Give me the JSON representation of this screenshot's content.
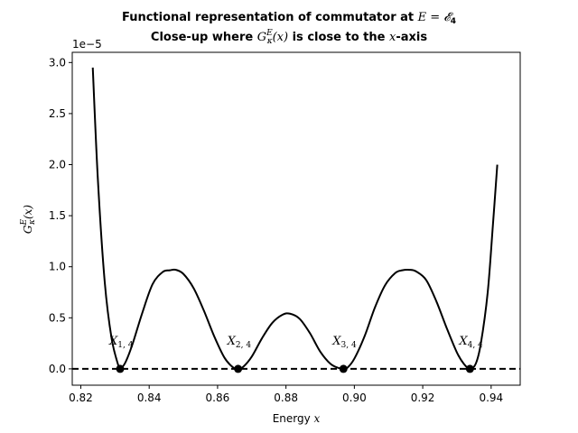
{
  "chart_data": {
    "type": "line",
    "title_lines": [
      "Functional representation of commutator at E = 𝓔4",
      "Close-up where G_κ^E(x) is close to the x-axis"
    ],
    "title_parts": {
      "line1_text": "Functional representation of commutator at ",
      "line1_math": "E = 𝓔",
      "line1_sub": "4",
      "line2_pre": "Close-up where ",
      "line2_math": "G",
      "line2_sup": "E",
      "line2_sub": "κ",
      "line2_mid": "(x)",
      "line2_post": " is close to the ",
      "line2_x": "x",
      "line2_end": "-axis"
    },
    "xlabel": "Energy x",
    "xlabel_parts": {
      "text": "Energy ",
      "var": "x"
    },
    "ylabel": "G_κ^E(x)",
    "ylabel_parts": {
      "main": "G",
      "sup": "E",
      "sub": "κ",
      "tail": "(x)"
    },
    "offset_text": "1e−5",
    "xlim": [
      0.8175,
      0.9485
    ],
    "ylim": [
      -0.16,
      3.1
    ],
    "y_unit_scale": 1e-05,
    "x_ticks": [
      "0.82",
      "0.84",
      "0.86",
      "0.88",
      "0.90",
      "0.92",
      "0.94"
    ],
    "y_ticks": [
      "0.0",
      "0.5",
      "1.0",
      "1.5",
      "2.0",
      "2.5",
      "3.0"
    ],
    "grid": false,
    "curve": {
      "color": "#000000",
      "x": [
        0.8235,
        0.825,
        0.827,
        0.829,
        0.831,
        0.8315,
        0.833,
        0.835,
        0.838,
        0.841,
        0.844,
        0.846,
        0.8478,
        0.85,
        0.853,
        0.856,
        0.859,
        0.862,
        0.8645,
        0.866,
        0.8675,
        0.87,
        0.873,
        0.876,
        0.879,
        0.8812,
        0.884,
        0.887,
        0.89,
        0.893,
        0.8955,
        0.8968,
        0.898,
        0.9,
        0.903,
        0.906,
        0.909,
        0.912,
        0.914,
        0.916,
        0.918,
        0.921,
        0.924,
        0.927,
        0.93,
        0.932,
        0.9338,
        0.9355,
        0.937,
        0.939,
        0.9405,
        0.9418
      ],
      "y": [
        2.95,
        1.85,
        0.85,
        0.3,
        0.03,
        0.0,
        0.06,
        0.23,
        0.55,
        0.83,
        0.95,
        0.965,
        0.97,
        0.93,
        0.79,
        0.57,
        0.32,
        0.11,
        0.015,
        0.0,
        0.02,
        0.12,
        0.3,
        0.45,
        0.53,
        0.54,
        0.49,
        0.35,
        0.17,
        0.05,
        0.007,
        0.0,
        0.012,
        0.1,
        0.32,
        0.6,
        0.82,
        0.94,
        0.965,
        0.97,
        0.955,
        0.87,
        0.66,
        0.4,
        0.16,
        0.05,
        0.0,
        0.05,
        0.25,
        0.75,
        1.4,
        2.0
      ]
    },
    "baseline": {
      "y": 0.0,
      "style": "dashed",
      "color": "#000000"
    },
    "roots": [
      {
        "x": 0.8315,
        "y": 0.0,
        "label": "X_{1,4}",
        "label_main": "X",
        "label_sub": "1, 4"
      },
      {
        "x": 0.866,
        "y": 0.0,
        "label": "X_{2,4}",
        "label_main": "X",
        "label_sub": "2, 4"
      },
      {
        "x": 0.8968,
        "y": 0.0,
        "label": "X_{3,4}",
        "label_main": "X",
        "label_sub": "3, 4"
      },
      {
        "x": 0.9338,
        "y": 0.0,
        "label": "X_{4,4}",
        "label_main": "X",
        "label_sub": "4, 4"
      }
    ]
  }
}
